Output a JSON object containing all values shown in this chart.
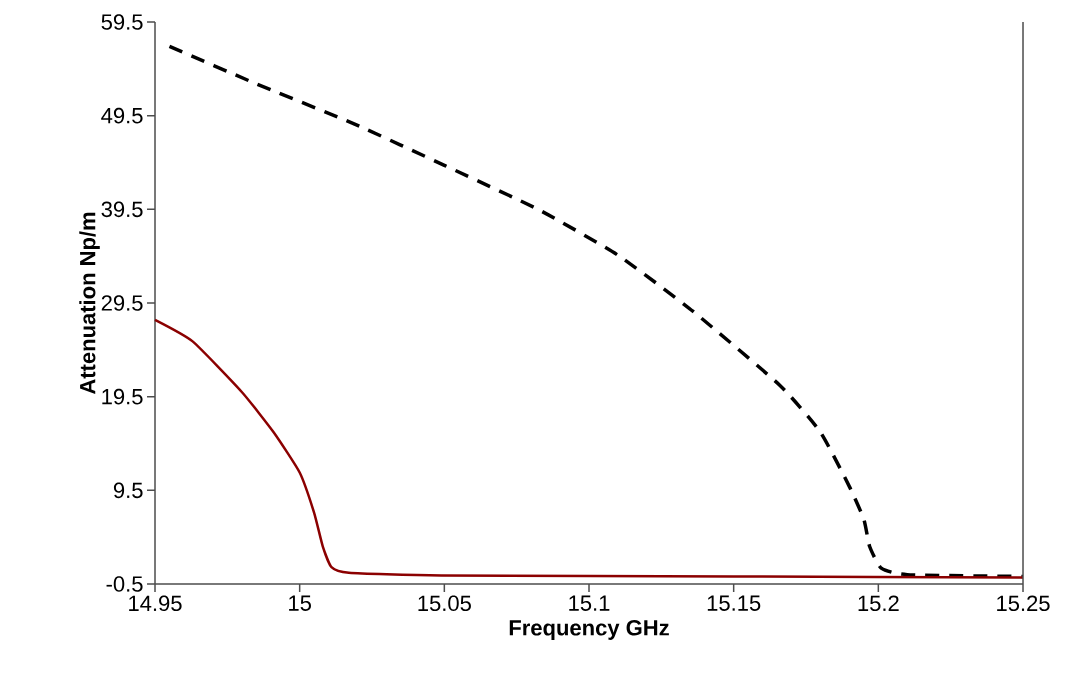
{
  "chart_data": {
    "type": "line",
    "xlabel": "Frequency GHz",
    "ylabel": "Attenuation Np/m",
    "xlim": [
      14.95,
      15.25
    ],
    "xticks": [
      14.95,
      15,
      15.05,
      15.1,
      15.15,
      15.2,
      15.25
    ],
    "ylim": [
      -0.5,
      59.5
    ],
    "yticks": [
      -0.5,
      9.5,
      19.5,
      29.5,
      39.5,
      49.5,
      59.5
    ],
    "grid": false,
    "series": [
      {
        "color": "#000000",
        "line_style": "dashed",
        "x": [
          14.955,
          14.985,
          15.019,
          15.05,
          15.083,
          15.11,
          15.136,
          15.166,
          15.18,
          15.19,
          15.195,
          15.197,
          15.201,
          15.21,
          15.25
        ],
        "values": [
          56.9,
          52.9,
          48.6,
          44.2,
          39.4,
          34.6,
          28.6,
          20.7,
          15.7,
          9.9,
          6.4,
          3.5,
          1.2,
          0.5,
          0.3
        ]
      },
      {
        "color": "#8b0000",
        "line_style": "solid",
        "x": [
          14.95,
          14.963,
          14.98,
          14.991,
          15.0,
          15.005,
          15.008,
          15.011,
          15.017,
          15.049,
          15.15,
          15.25
        ],
        "values": [
          27.7,
          25.4,
          20.0,
          15.7,
          11.4,
          7.1,
          3.5,
          1.3,
          0.7,
          0.4,
          0.3,
          0.2
        ]
      }
    ]
  }
}
